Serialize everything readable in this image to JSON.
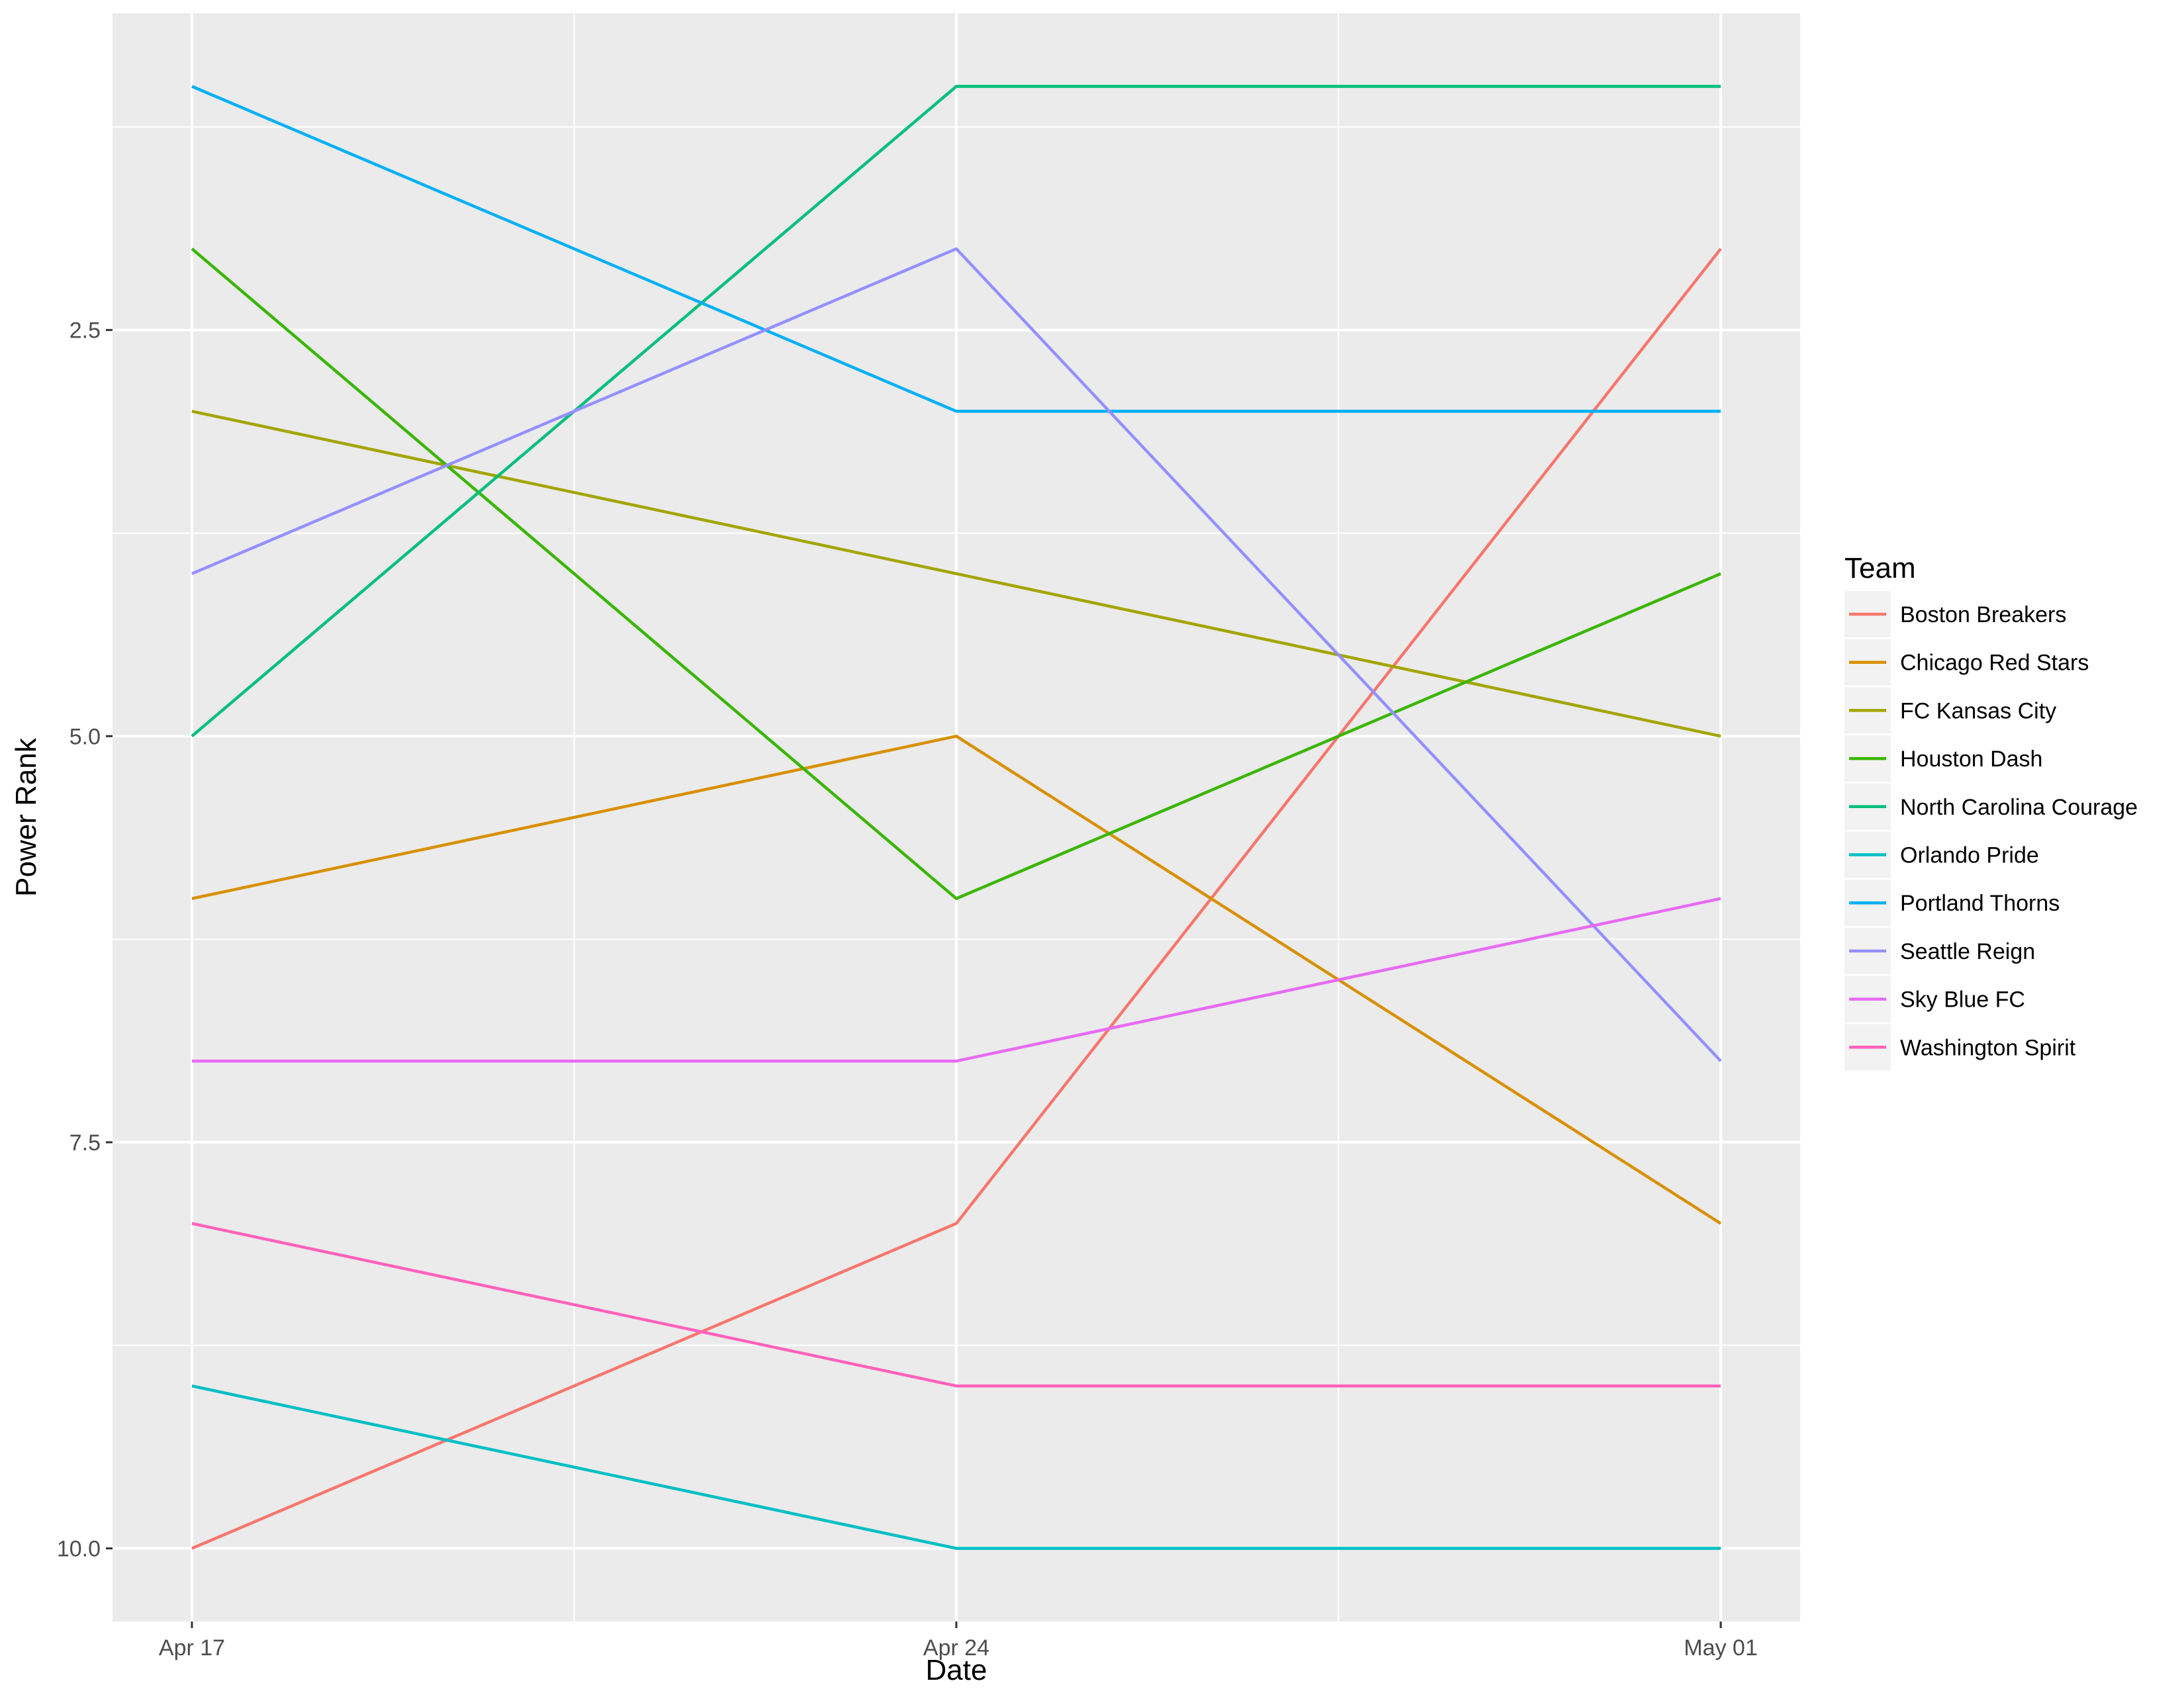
{
  "chart_data": {
    "type": "line",
    "title": "",
    "xlabel": "Date",
    "ylabel": "Power Rank",
    "x": [
      "Apr 17",
      "Apr 24",
      "May 01"
    ],
    "y_ticks": [
      "2.5",
      "5.0",
      "7.5",
      "10.0"
    ],
    "y_tick_values": [
      2.5,
      5.0,
      7.5,
      10.0
    ],
    "ylim": [
      0.55,
      10.45
    ],
    "y_reversed": true,
    "grid": true,
    "legend_position": "right",
    "legend_title": "Team",
    "series": [
      {
        "name": "Boston Breakers",
        "color": "#F8766D",
        "values": [
          10,
          8,
          2
        ]
      },
      {
        "name": "Chicago Red Stars",
        "color": "#D89000",
        "values": [
          6,
          5,
          8
        ]
      },
      {
        "name": "FC Kansas City",
        "color": "#A3A500",
        "values": [
          3,
          4,
          5
        ]
      },
      {
        "name": "Houston Dash",
        "color": "#39B600",
        "values": [
          2,
          6,
          4
        ]
      },
      {
        "name": "North Carolina Courage",
        "color": "#00BF7D",
        "values": [
          5,
          1,
          1
        ]
      },
      {
        "name": "Orlando Pride",
        "color": "#00BFC4",
        "values": [
          9,
          10,
          10
        ]
      },
      {
        "name": "Portland Thorns",
        "color": "#00B0F6",
        "values": [
          1,
          3,
          3
        ]
      },
      {
        "name": "Seattle Reign",
        "color": "#9590FF",
        "values": [
          4,
          2,
          7
        ]
      },
      {
        "name": "Sky Blue FC",
        "color": "#E76BF3",
        "values": [
          7,
          7,
          6
        ]
      },
      {
        "name": "Washington Spirit",
        "color": "#FF62BC",
        "values": [
          8,
          9,
          9
        ]
      }
    ]
  }
}
